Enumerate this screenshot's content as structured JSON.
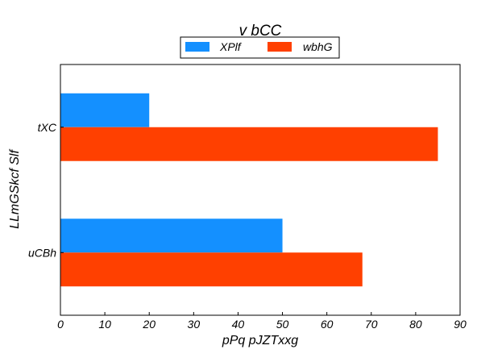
{
  "chart_data": {
    "type": "bar",
    "orientation": "horizontal",
    "title": "v bCC",
    "xlabel": "pPq pJZTxxg",
    "ylabel": "LLmGSkcf Slf",
    "categories": [
      "uCBh",
      "tXC"
    ],
    "series": [
      {
        "name": "XPlf",
        "values": [
          50,
          20
        ],
        "color": "#1490ff"
      },
      {
        "name": "wbhG",
        "values": [
          68,
          85
        ],
        "color": "#ff4000"
      }
    ],
    "xlim": [
      0,
      90
    ],
    "xticks": [
      0,
      10,
      20,
      30,
      40,
      50,
      60,
      70,
      80,
      90
    ],
    "grid": false,
    "legend_position": "top-center"
  }
}
